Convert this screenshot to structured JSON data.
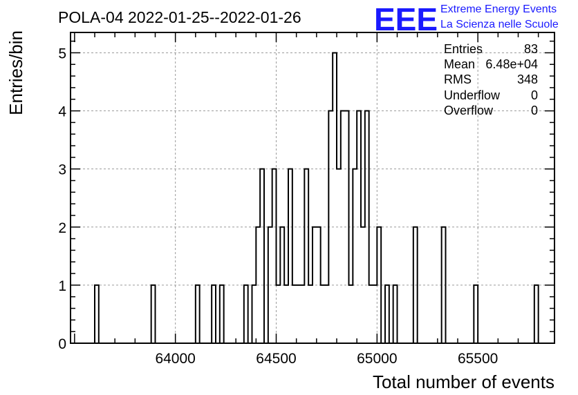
{
  "chart_data": {
    "type": "bar",
    "title": "POLA-04 2022-01-25--2022-01-26",
    "xlabel": "Total number of events",
    "ylabel": "Entries/bin",
    "xlim": [
      63480,
      65880
    ],
    "ylim": [
      0,
      5.35
    ],
    "x_ticks": [
      64000,
      64500,
      65000,
      65500
    ],
    "y_ticks": [
      0,
      1,
      2,
      3,
      4,
      5
    ],
    "bins": [
      63600,
      63620,
      63640,
      63660,
      63680,
      63700,
      63720,
      63740,
      63760,
      63780,
      63800,
      63820,
      63840,
      63860,
      63880,
      63900,
      63920,
      63940,
      63960,
      63980,
      64000,
      64020,
      64040,
      64060,
      64080,
      64100,
      64120,
      64140,
      64160,
      64180,
      64200,
      64220,
      64240,
      64260,
      64280,
      64300,
      64320,
      64340,
      64360,
      64380,
      64400,
      64420,
      64440,
      64460,
      64480,
      64500,
      64520,
      64540,
      64560,
      64580,
      64600,
      64620,
      64640,
      64660,
      64680,
      64700,
      64720,
      64740,
      64760,
      64780,
      64800,
      64820,
      64840,
      64860,
      64880,
      64900,
      64920,
      64940,
      64960,
      64980,
      65000,
      65020,
      65040,
      65060,
      65080,
      65100,
      65120,
      65140,
      65160,
      65180,
      65200,
      65220,
      65240,
      65260,
      65280,
      65300,
      65320,
      65340,
      65360,
      65380,
      65400,
      65420,
      65440,
      65460,
      65480,
      65500,
      65520,
      65540,
      65560,
      65580,
      65600,
      65620,
      65640,
      65660,
      65680,
      65700,
      65720,
      65740,
      65760,
      65780
    ],
    "bin_width": 20,
    "values": [
      1,
      0,
      0,
      0,
      0,
      0,
      0,
      0,
      0,
      0,
      0,
      0,
      0,
      0,
      1,
      0,
      0,
      0,
      0,
      0,
      0,
      0,
      0,
      0,
      0,
      1,
      0,
      0,
      0,
      1,
      0,
      1,
      0,
      0,
      0,
      0,
      0,
      1,
      0,
      1,
      2,
      3,
      0,
      2,
      3,
      1,
      2,
      1,
      3,
      1,
      1,
      1,
      3,
      1,
      2,
      2,
      1,
      1,
      4,
      5,
      3,
      4,
      4,
      1,
      3,
      4,
      2,
      4,
      1,
      1,
      2,
      0,
      1,
      0,
      1,
      0,
      0,
      0,
      0,
      2,
      0,
      0,
      0,
      0,
      0,
      0,
      2,
      0,
      0,
      0,
      0,
      0,
      0,
      0,
      1,
      0,
      0,
      0,
      0,
      0,
      0,
      0,
      0,
      0,
      0,
      0,
      0,
      0,
      0,
      1
    ],
    "grid": true,
    "legend": "none"
  },
  "stats": [
    {
      "label": "Entries",
      "value": "83"
    },
    {
      "label": "Mean",
      "value": "6.48e+04"
    },
    {
      "label": "RMS",
      "value": "348"
    },
    {
      "label": "Underflow",
      "value": "0"
    },
    {
      "label": "Overflow",
      "value": "0"
    }
  ],
  "logo": {
    "letters": "EEE",
    "line1": "Extreme Energy Events",
    "line2": "La Scienza nelle Scuole"
  }
}
